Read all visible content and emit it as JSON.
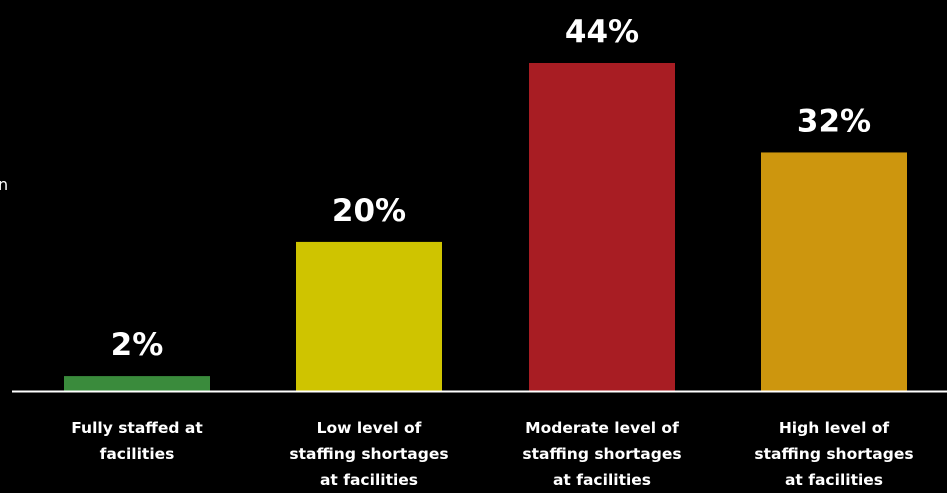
{
  "chart_data": {
    "type": "bar",
    "title": "",
    "xlabel": "",
    "ylabel": "",
    "ylim": [
      0,
      50
    ],
    "grid": false,
    "categories": [
      [
        "Fully staffed at",
        "facilities"
      ],
      [
        "Low level of",
        "staffing shortages",
        "at facilities"
      ],
      [
        "Moderate level of",
        "staffing shortages",
        "at facilities"
      ],
      [
        "High level of",
        "staffing shortages",
        "at facilities"
      ]
    ],
    "values": [
      2,
      20,
      44,
      32
    ],
    "value_labels": [
      "2%",
      "20%",
      "44%",
      "32%"
    ],
    "colors": [
      "#3a8b3c",
      "#cfc400",
      "#a81d23",
      "#cd960e"
    ],
    "stray_text": "n"
  }
}
